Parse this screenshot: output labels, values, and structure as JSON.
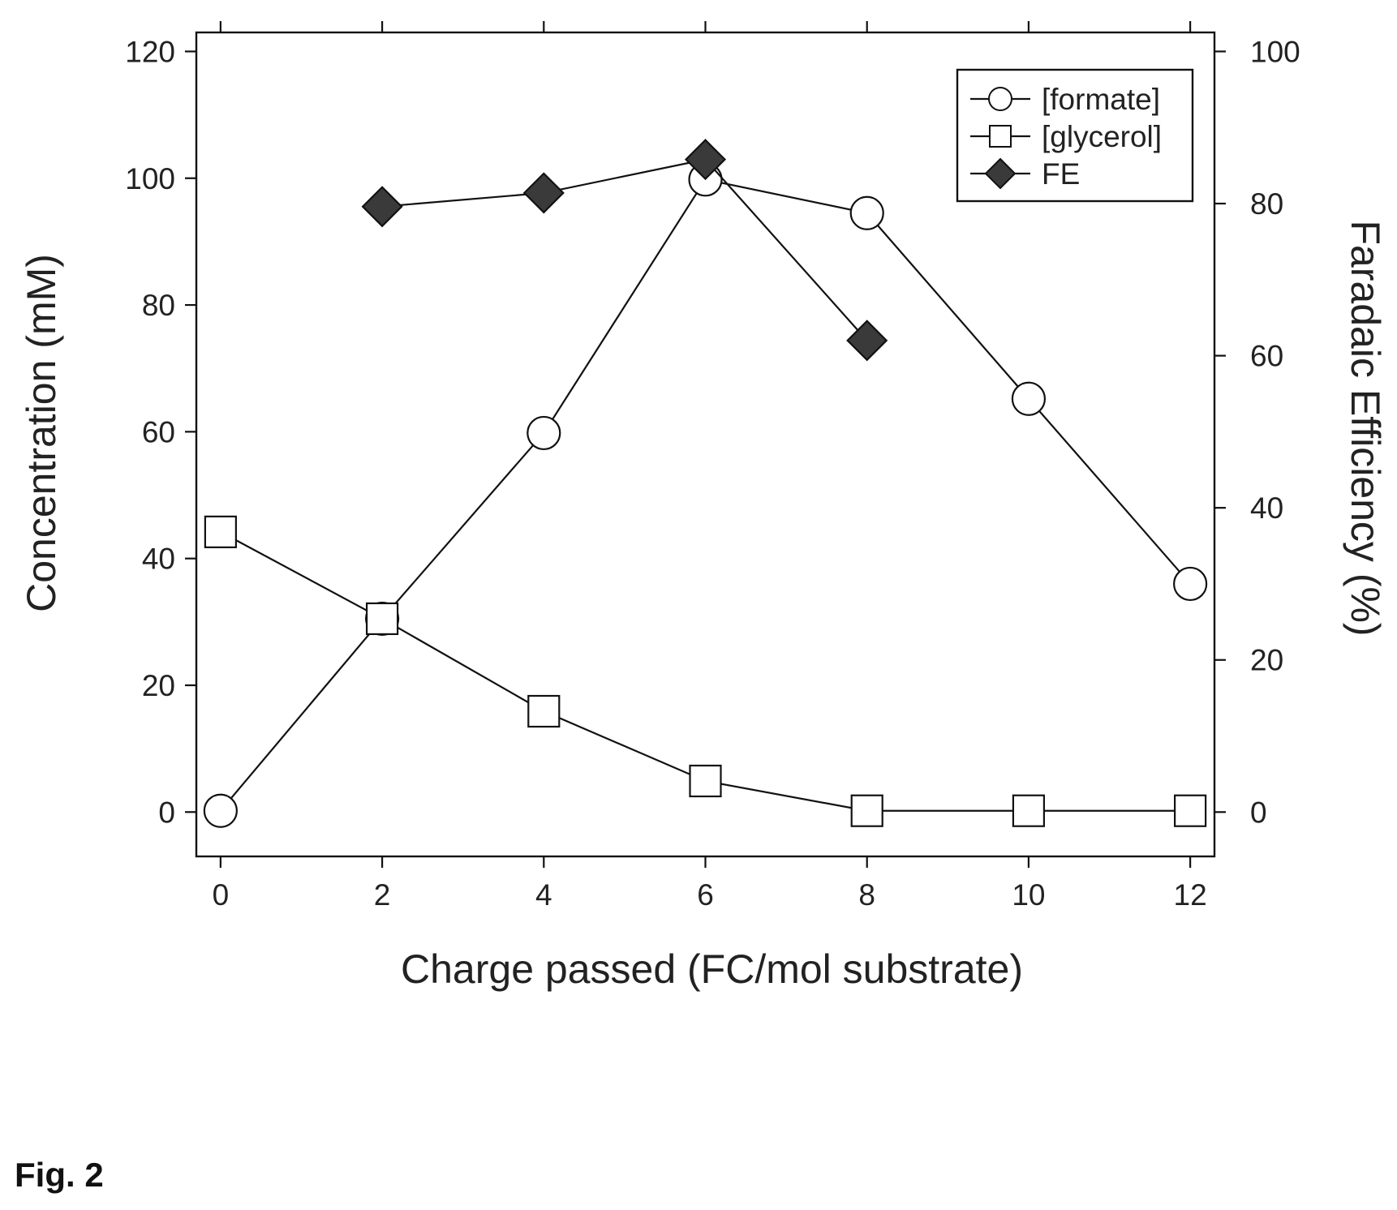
{
  "figure_label": "Fig. 2",
  "chart_data": {
    "type": "line",
    "xlabel": "Charge passed (FC/mol substrate)",
    "ylabel": "Concentration (mM)",
    "y2label": "Faradaic Efficiency (%)",
    "xlim": [
      -0.3,
      12.3
    ],
    "ylim": [
      -7,
      123
    ],
    "y2lim": [
      -5.83,
      102.5
    ],
    "x_ticks": [
      "0",
      "2",
      "4",
      "6",
      "8",
      "10",
      "12"
    ],
    "y_ticks": [
      "0",
      "20",
      "40",
      "60",
      "80",
      "100",
      "120"
    ],
    "y2_ticks": [
      "0",
      "20",
      "40",
      "60",
      "80",
      "100"
    ],
    "legend_position": "top-right",
    "series": [
      {
        "name": "[formate]",
        "axis": "left",
        "marker": "circle",
        "x": [
          0,
          2,
          4,
          6,
          8,
          10,
          12
        ],
        "values": [
          0.2,
          30.5,
          59.8,
          99.8,
          94.5,
          65.2,
          36.0
        ]
      },
      {
        "name": "[glycerol]",
        "axis": "left",
        "marker": "square",
        "x": [
          0,
          2,
          4,
          6,
          8,
          10,
          12
        ],
        "values": [
          44.2,
          30.5,
          15.9,
          4.9,
          0.2,
          0.2,
          0.2
        ]
      },
      {
        "name": "FE",
        "axis": "right",
        "marker": "diamond",
        "x": [
          2,
          4,
          6,
          8
        ],
        "values": [
          79.6,
          81.4,
          85.8,
          62.0
        ]
      }
    ]
  }
}
